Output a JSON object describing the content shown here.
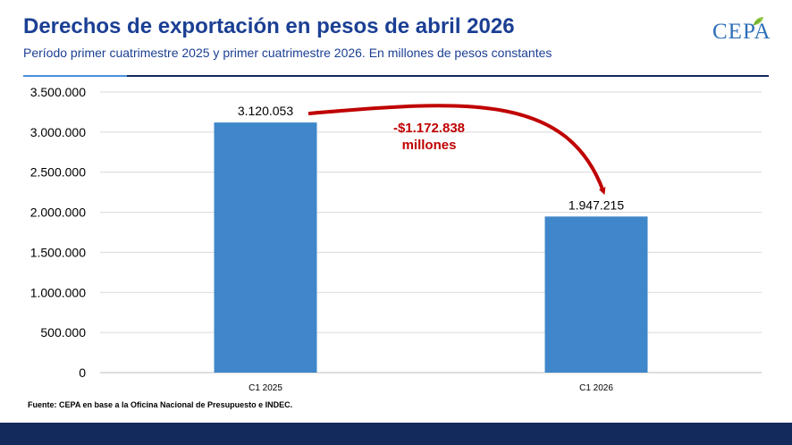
{
  "header": {
    "title": "Derechos de exportación en pesos de abril 2026",
    "subtitle": "Período primer cuatrimestre 2025 y primer cuatrimestre 2026. En millones de pesos constantes"
  },
  "logo": {
    "text": "CEPA",
    "icon": "leaf-icon"
  },
  "chart_data": {
    "type": "bar",
    "categories": [
      "C1 2025",
      "C1 2026"
    ],
    "values": [
      3120053,
      1947215
    ],
    "value_labels": [
      "3.120.053",
      "1.947.215"
    ],
    "ylim": [
      0,
      3500000
    ],
    "yticks": [
      0,
      500000,
      1000000,
      1500000,
      2000000,
      2500000,
      3000000,
      3500000
    ],
    "ytick_labels": [
      "0",
      "500.000",
      "1.000.000",
      "1.500.000",
      "2.000.000",
      "2.500.000",
      "3.000.000",
      "3.500.000"
    ],
    "grid": true,
    "bar_color": "#3f87ca",
    "annotation": {
      "line1": "-$1.172.838",
      "line2": "millones",
      "color": "#c00000",
      "from": "C1 2025",
      "to": "C1 2026"
    }
  },
  "source": "Fuente: CEPA en base a la Oficina Nacional de Presupuesto e INDEC.",
  "colors": {
    "title": "#1b3f94",
    "footer": "#122a5c"
  }
}
